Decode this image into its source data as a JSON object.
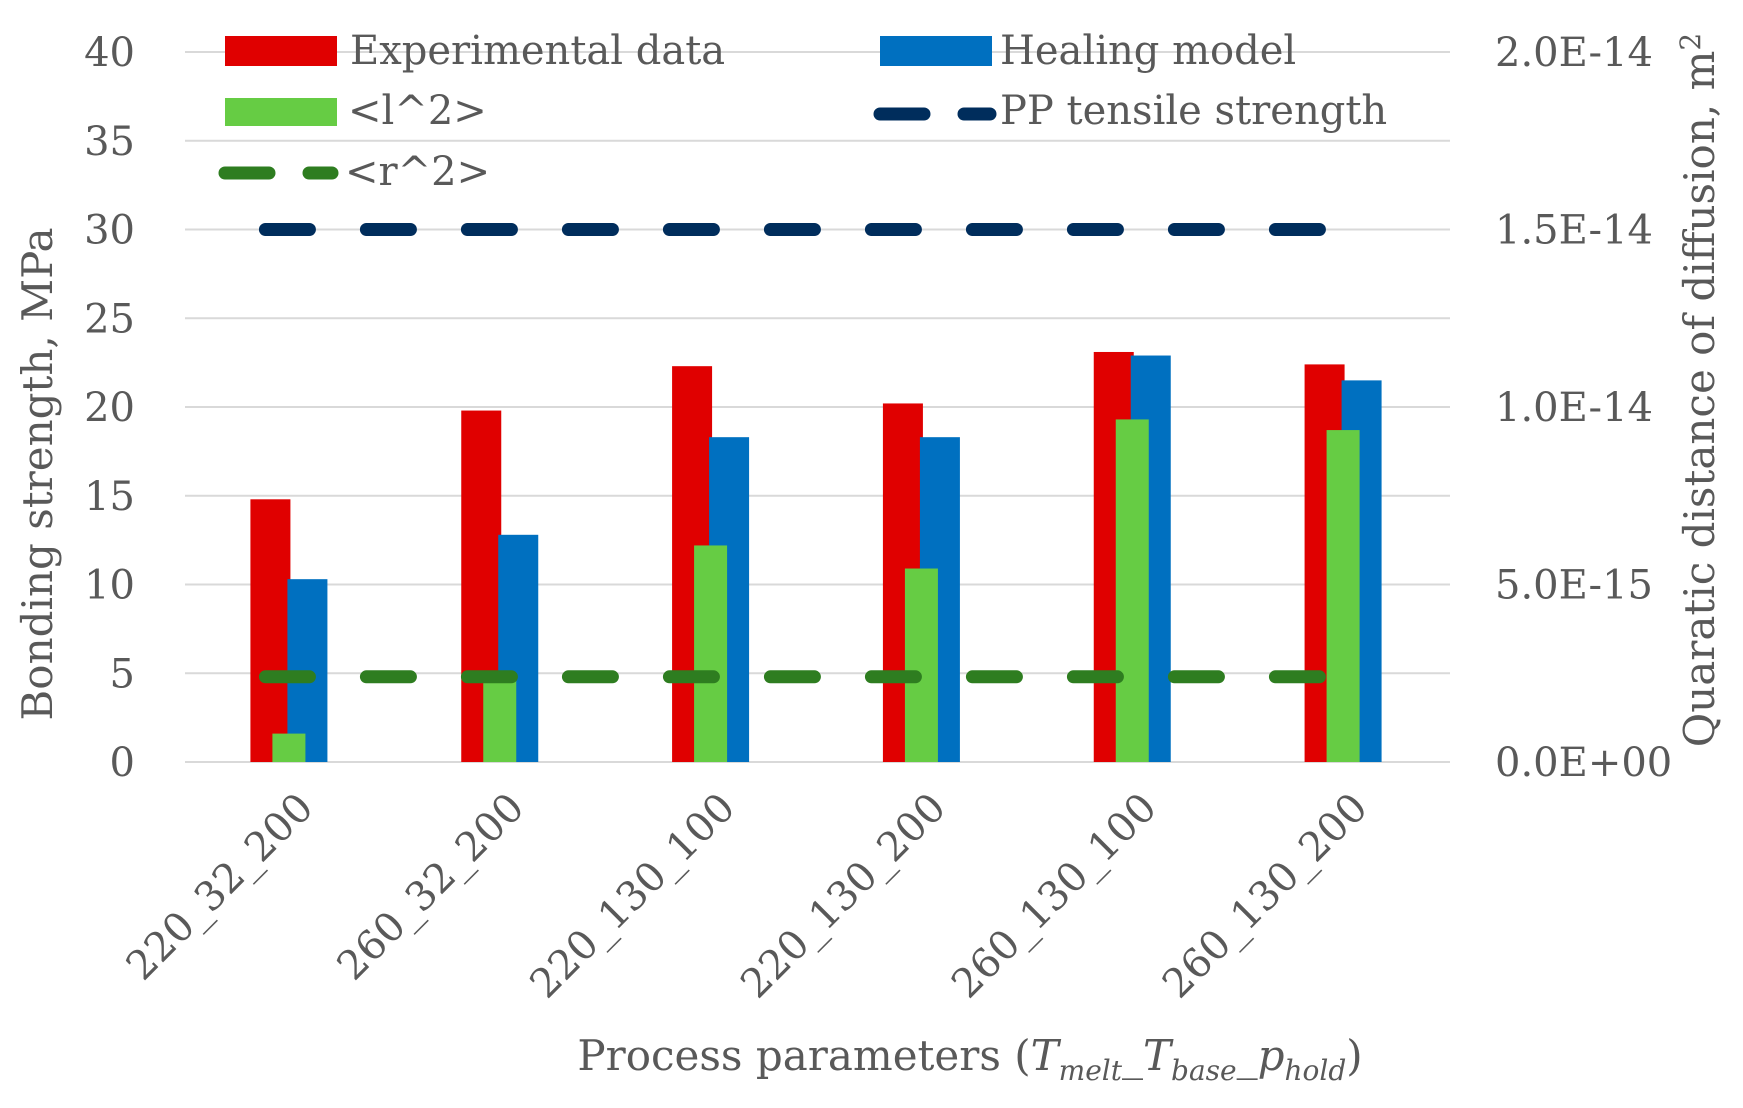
{
  "chart_data": {
    "type": "bar",
    "xlabel_main": "Process parameters (",
    "xlabel_T1": "T",
    "xlabel_T1_sub": "melt",
    "xlabel_sep1": "_",
    "xlabel_T2": "T",
    "xlabel_T2_sub": "base",
    "xlabel_sep2": "_",
    "xlabel_p": "p",
    "xlabel_p_sub": "hold",
    "xlabel_close": ")",
    "ylabel": "Bonding strength, MPa",
    "y2label": "Quaratic distance of diffusion, m",
    "y2label_sup": "2",
    "ylim": [
      0,
      40
    ],
    "y2lim": [
      0,
      2e-14
    ],
    "yticks": [
      "0",
      "5",
      "10",
      "15",
      "20",
      "25",
      "30",
      "35",
      "40"
    ],
    "y2ticks": [
      "0.0E+00",
      "5.0E-15",
      "1.0E-14",
      "1.5E-14",
      "2.0E-14"
    ],
    "categories": [
      "220_32_200",
      "260_32_200",
      "220_130_100",
      "220_130_200",
      "260_130_100",
      "260_130_200"
    ],
    "series": [
      {
        "name": "Experimental data",
        "axis": "left",
        "kind": "bar",
        "color": "#E00000",
        "values": [
          14.8,
          19.8,
          22.3,
          20.2,
          23.1,
          22.4
        ]
      },
      {
        "name": "Healing model",
        "axis": "left",
        "kind": "bar",
        "color": "#0070C0",
        "values": [
          10.3,
          12.8,
          18.3,
          18.3,
          22.9,
          21.5
        ]
      },
      {
        "name": "<l^2>",
        "axis": "right",
        "kind": "bar",
        "color": "#66CC44",
        "values": [
          8e-16,
          2.45e-15,
          6.1e-15,
          5.45e-15,
          9.65e-15,
          9.35e-15
        ]
      },
      {
        "name": "PP tensile strength",
        "axis": "left",
        "kind": "dashed-line",
        "color": "#002D5C",
        "value": 30
      },
      {
        "name": "<r^2>",
        "axis": "right",
        "kind": "dashed-line",
        "color": "#2E7D20",
        "value": 2.4e-15
      }
    ],
    "legend": [
      "Experimental data",
      "Healing model",
      "<l^2>",
      "PP tensile strength",
      "<r^2>"
    ]
  }
}
